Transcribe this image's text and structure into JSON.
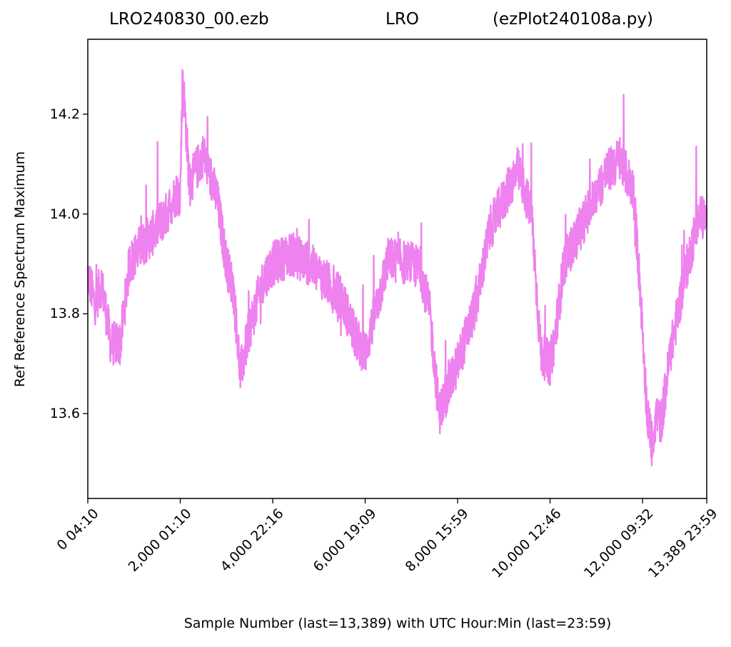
{
  "title": {
    "left": "LRO240830_00.ezb",
    "center": "LRO",
    "right": "(ezPlot240108a.py)"
  },
  "chart_data": {
    "type": "line",
    "ylabel": "Ref Reference Spectrum Maximum",
    "xlabel": "Sample Number (last=13,389) with UTC Hour:Min (last=23:59)",
    "xlim": [
      0,
      13389
    ],
    "ylim": [
      13.43,
      14.35
    ],
    "grid": false,
    "line_color": "#ee82ee",
    "xticks": [
      {
        "value": 0,
        "label": "0  04:10"
      },
      {
        "value": 2000,
        "label": "2,000  01:10"
      },
      {
        "value": 4000,
        "label": "4,000  22:16"
      },
      {
        "value": 6000,
        "label": "6,000  19:09"
      },
      {
        "value": 8000,
        "label": "8,000  15:59"
      },
      {
        "value": 10000,
        "label": "10,000  12:46"
      },
      {
        "value": 12000,
        "label": "12,000  09:32"
      },
      {
        "value": 13389,
        "label": "13,389  23:59"
      }
    ],
    "yticks": [
      {
        "value": 13.6,
        "label": "13.6"
      },
      {
        "value": 13.8,
        "label": "13.8"
      },
      {
        "value": 14.0,
        "label": "14.0"
      },
      {
        "value": 14.2,
        "label": "14.2"
      }
    ],
    "series": [
      {
        "x": [
          0,
          150,
          300,
          500,
          700,
          900,
          1100,
          1400,
          1700,
          1900,
          2000,
          2050,
          2200,
          2500,
          2800,
          3000,
          3150,
          3300,
          3500,
          3800,
          4000,
          4400,
          4800,
          5000,
          5200,
          5500,
          5800,
          6000,
          6500,
          7000,
          7200,
          7400,
          7600,
          7800,
          8000,
          8400,
          8700,
          9000,
          9300,
          9600,
          9800,
          10000,
          10100,
          10300,
          10600,
          10900,
          11200,
          11500,
          11800,
          11950,
          12100,
          12200,
          12300,
          12400,
          12600,
          12900,
          13100,
          13250,
          13389
        ],
        "y": [
          13.88,
          13.82,
          13.86,
          13.74,
          13.74,
          13.9,
          13.93,
          13.96,
          14.0,
          14.04,
          14.04,
          14.28,
          14.06,
          14.12,
          14.03,
          13.9,
          13.85,
          13.68,
          13.77,
          13.87,
          13.9,
          13.92,
          13.9,
          13.88,
          13.86,
          13.83,
          13.75,
          13.72,
          13.91,
          13.9,
          13.89,
          13.8,
          13.6,
          13.65,
          13.7,
          13.82,
          13.97,
          14.03,
          14.09,
          14.0,
          13.72,
          13.7,
          13.75,
          13.9,
          13.96,
          14.02,
          14.08,
          14.11,
          14.05,
          13.85,
          13.6,
          13.54,
          13.6,
          13.58,
          13.72,
          13.87,
          13.95,
          14.0,
          13.98
        ]
      }
    ]
  }
}
